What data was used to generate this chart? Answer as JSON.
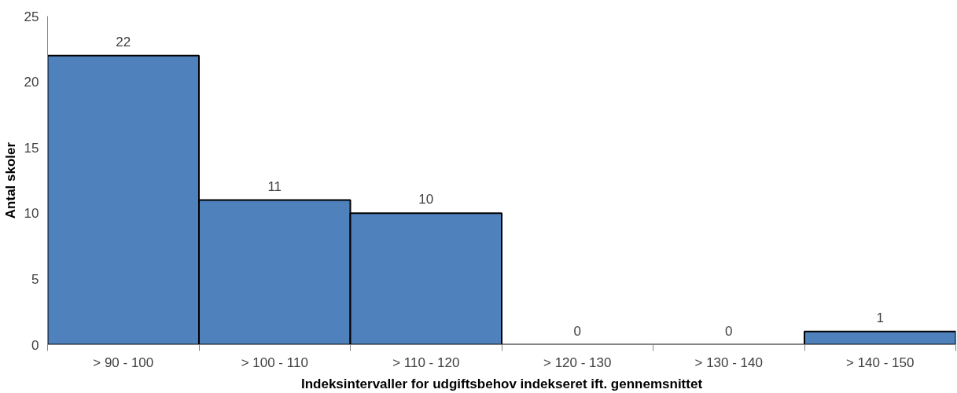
{
  "chart_data": {
    "type": "bar",
    "xlabel": "Indeksintervaller for udgiftsbehov indekseret ift. gennemsnittet",
    "ylabel": "Antal skoler",
    "categories": [
      "> 90 - 100",
      "> 100 - 110",
      "> 110 - 120",
      "> 120 - 130",
      "> 130 - 140",
      "> 140 - 150"
    ],
    "values": [
      22,
      11,
      10,
      0,
      0,
      1
    ],
    "color": "#4f81bd",
    "ylim": [
      0,
      25
    ],
    "yticks": [
      0,
      5,
      10,
      15,
      20,
      25
    ],
    "grid": false,
    "data_labels": true
  }
}
